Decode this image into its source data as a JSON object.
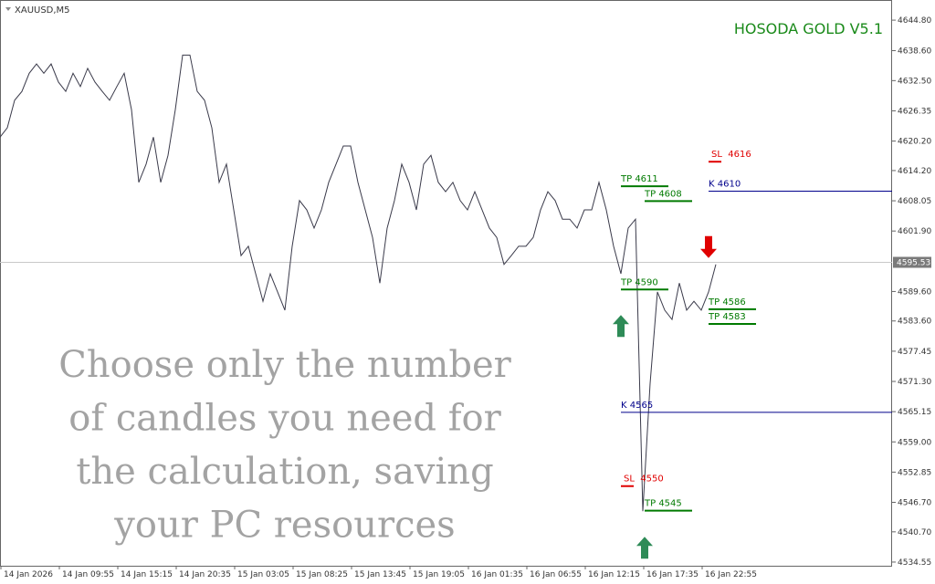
{
  "chart_data": {
    "type": "line",
    "title": "XAUUSD,M5",
    "annotation": "HOSODA GOLD V5.1",
    "caption": [
      "Choose only the number",
      "of candles you need for",
      "the calculation, saving",
      "your PC resources"
    ],
    "color": "#3a3a4a",
    "values": [
      4621.0,
      4622.9,
      4628.5,
      4630.3,
      4634.0,
      4635.9,
      4634.0,
      4635.9,
      4632.2,
      4630.3,
      4634.0,
      4631.3,
      4635.0,
      4632.2,
      4630.3,
      4628.5,
      4631.3,
      4634.0,
      4626.6,
      4611.8,
      4615.5,
      4621.0,
      4611.8,
      4617.3,
      4626.6,
      4637.7,
      4637.7,
      4630.3,
      4628.5,
      4622.9,
      4611.8,
      4615.5,
      4606.2,
      4596.9,
      4598.8,
      4593.2,
      4587.6,
      4593.2,
      4589.5,
      4585.8,
      4598.8,
      4608.1,
      4606.2,
      4602.5,
      4606.2,
      4611.8,
      4615.5,
      4619.2,
      4619.2,
      4611.8,
      4606.2,
      4600.6,
      4591.3,
      4602.5,
      4608.1,
      4615.5,
      4611.8,
      4606.2,
      4615.5,
      4617.3,
      4611.8,
      4609.9,
      4611.8,
      4608.1,
      4606.2,
      4609.9,
      4606.2,
      4602.5,
      4600.6,
      4595.1,
      4596.9,
      4598.8,
      4598.8,
      4600.6,
      4606.2,
      4609.9,
      4608.1,
      4604.3,
      4604.3,
      4602.5,
      4606.2,
      4606.2,
      4611.8,
      4606.2,
      4598.8,
      4593.2,
      4602.5,
      4604.3,
      4544.9,
      4570.9,
      4589.5,
      4585.8,
      4583.9,
      4591.3,
      4585.8,
      4587.6,
      4585.8,
      4589.5,
      4595.1
    ],
    "xlim": [
      0,
      122.125
    ],
    "ylim": [
      4533.8,
      4648.9
    ],
    "xticks": [
      {
        "value": 0,
        "label": "14 Jan 2026"
      },
      {
        "value": 8,
        "label": "14 Jan 09:55"
      },
      {
        "value": 16,
        "label": "14 Jan 15:15"
      },
      {
        "value": 24,
        "label": "14 Jan 20:35"
      },
      {
        "value": 32,
        "label": "15 Jan 03:05"
      },
      {
        "value": 40,
        "label": "15 Jan 08:25"
      },
      {
        "value": 48,
        "label": "15 Jan 13:45"
      },
      {
        "value": 56,
        "label": "15 Jan 19:05"
      },
      {
        "value": 64,
        "label": "16 Jan 01:35"
      },
      {
        "value": 72,
        "label": "16 Jan 06:55"
      },
      {
        "value": 80,
        "label": "16 Jan 12:15"
      },
      {
        "value": 88,
        "label": "16 Jan 17:35"
      },
      {
        "value": 96,
        "label": "16 Jan 22:55"
      }
    ],
    "yticks": [
      {
        "value": 4644.8,
        "label": "4644.80"
      },
      {
        "value": 4638.6,
        "label": "4638.60"
      },
      {
        "value": 4632.5,
        "label": "4632.50"
      },
      4626.35,
      {
        "value": 4620.2,
        "label": "4620.20"
      },
      {
        "value": 4614.2,
        "label": "4614.20"
      },
      4608.05,
      {
        "value": 4601.9,
        "label": "4601.90"
      },
      {
        "value": 4589.6,
        "label": "4589.60"
      },
      {
        "value": 4583.6,
        "label": "4583.60"
      },
      4577.45,
      {
        "value": 4571.3,
        "label": "4571.30"
      },
      4565.15,
      {
        "value": 4559,
        "label": "4559.00"
      },
      4552.85,
      {
        "value": 4546.7,
        "label": "4546.70"
      },
      {
        "value": 4540.7,
        "label": "4540.70"
      },
      4534.55
    ],
    "current_price": 4595.53,
    "levels": [
      {
        "label": "TP 4611",
        "value": 4611,
        "x": 85,
        "color": "#007a00"
      },
      {
        "label": "TP 4608",
        "value": 4608,
        "x": 88.25,
        "color": "#007a00"
      },
      {
        "label": "TP 4590",
        "value": 4590,
        "x": 85,
        "color": "#007a00"
      },
      {
        "label": "TP 4586",
        "value": 4586,
        "x": 97,
        "color": "#007a00"
      },
      {
        "label": "TP 4583",
        "value": 4583,
        "x": 97,
        "color": "#007a00"
      },
      {
        "label": "TP 4545",
        "value": 4545,
        "x": 88.25,
        "color": "#007a00"
      },
      {
        "label": "SL  4616",
        "value": 4616,
        "x": 97,
        "color": "#e00000"
      },
      {
        "label": "SL  4550",
        "value": 4550,
        "x": 85,
        "color": "#e00000"
      },
      {
        "label": "K 4610",
        "value": 4610,
        "x": 97,
        "color": "#00008b"
      },
      {
        "label": "K 4565",
        "value": 4565,
        "x": 85,
        "color": "#00008b"
      }
    ],
    "signals": [
      {
        "direction": "up",
        "value": 4584.8,
        "x": 85,
        "color": "#2e8b57"
      },
      {
        "direction": "up",
        "value": 4539.7,
        "x": 88.25,
        "color": "#2e8b57"
      },
      {
        "direction": "down",
        "value": 4596.4,
        "x": 97,
        "color": "#e00000"
      }
    ]
  }
}
